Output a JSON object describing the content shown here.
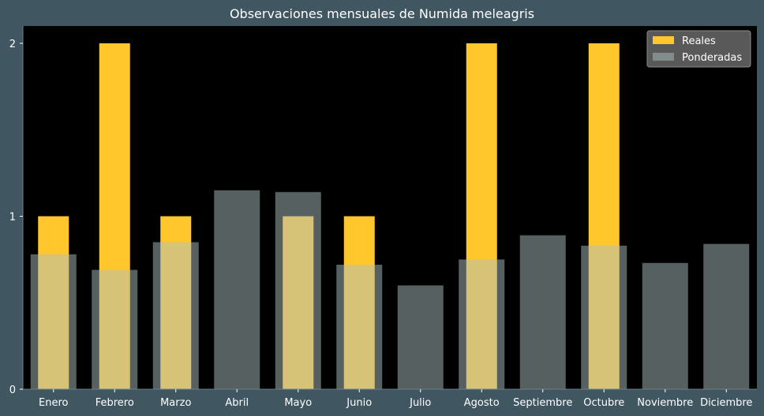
{
  "chart_data": {
    "type": "bar",
    "title": "Observaciones mensuales de Numida meleagris",
    "xlabel": "",
    "ylabel": "",
    "categories": [
      "Enero",
      "Febrero",
      "Marzo",
      "Abril",
      "Mayo",
      "Junio",
      "Julio",
      "Agosto",
      "Septiembre",
      "Octubre",
      "Noviembre",
      "Diciembre"
    ],
    "series": [
      {
        "name": "Reales",
        "color": "#ffc72c",
        "values": [
          1,
          2,
          1,
          0,
          1,
          1,
          0,
          2,
          0,
          2,
          0,
          0
        ]
      },
      {
        "name": "Ponderadas",
        "color": "#adbfc2",
        "opacity": 0.5,
        "values": [
          0.78,
          0.69,
          0.85,
          1.15,
          1.14,
          0.72,
          0.6,
          0.75,
          0.89,
          0.83,
          0.73,
          0.84
        ]
      }
    ],
    "yticks": [
      0,
      1,
      2
    ],
    "ylim": [
      0,
      2.1
    ],
    "grid": false,
    "legend_position": "top-right",
    "colors": {
      "figure_background": "#405762",
      "plot_background": "#000000",
      "text": "#ffffff",
      "legend_background": "#595959"
    }
  }
}
